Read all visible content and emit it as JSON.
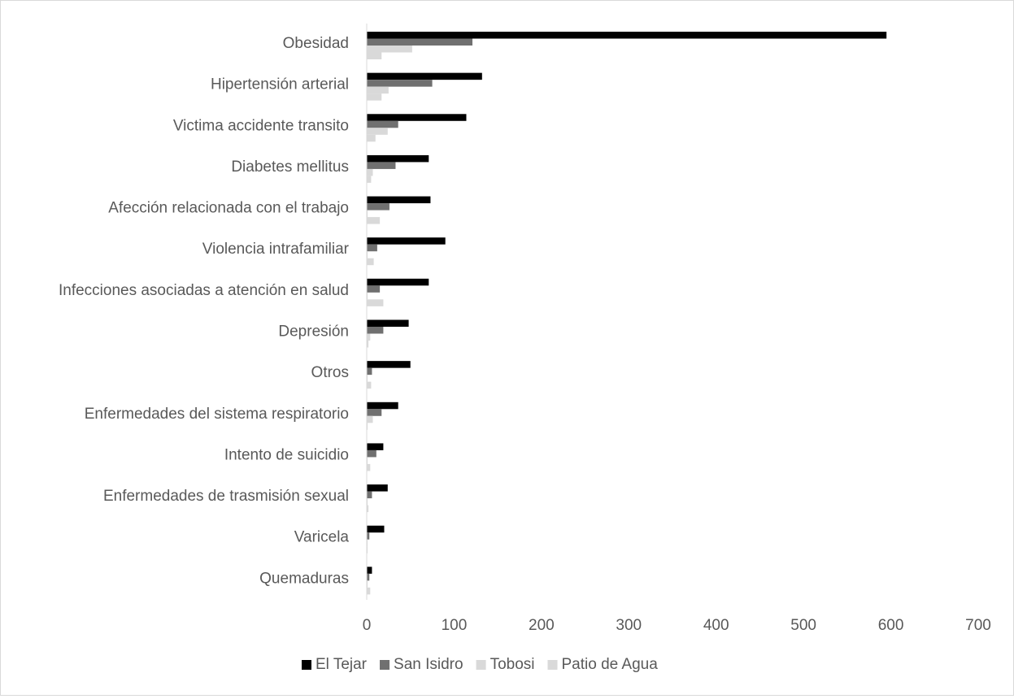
{
  "chart_data": {
    "type": "bar",
    "orientation": "horizontal",
    "categories": [
      "Obesidad",
      "Hipertensión arterial",
      "Victima accidente transito",
      "Diabetes mellitus",
      "Afección relacionada con el trabajo",
      "Violencia intrafamiliar",
      "Infecciones asociadas a atención en salud",
      "Depresión",
      "Otros",
      "Enfermedades del sistema respiratorio",
      "Intento de suicidio",
      "Enfermedades de trasmisión sexual",
      "Varicela",
      "Quemaduras"
    ],
    "series": [
      {
        "name": "El Tejar",
        "color": "#000000",
        "values": [
          595,
          132,
          114,
          71,
          73,
          90,
          71,
          48,
          50,
          36,
          19,
          24,
          20,
          6
        ]
      },
      {
        "name": "San Isidro",
        "color": "#707070",
        "values": [
          121,
          75,
          36,
          33,
          26,
          12,
          15,
          19,
          6,
          17,
          11,
          6,
          3,
          3
        ]
      },
      {
        "name": "Tobosi",
        "color": "#d9d9d9",
        "values": [
          52,
          25,
          24,
          7,
          1,
          1,
          1,
          4,
          1,
          7,
          1,
          1,
          1,
          1
        ]
      },
      {
        "name": "Patio de Agua",
        "color": "#d9d9d9",
        "values": [
          17,
          17,
          10,
          5,
          15,
          8,
          19,
          2,
          5,
          1,
          4,
          2,
          1,
          4
        ]
      }
    ],
    "xlim": [
      0,
      700
    ],
    "xticks": [
      0,
      100,
      200,
      300,
      400,
      500,
      600,
      700
    ],
    "grid": false,
    "legend_position": "bottom"
  }
}
